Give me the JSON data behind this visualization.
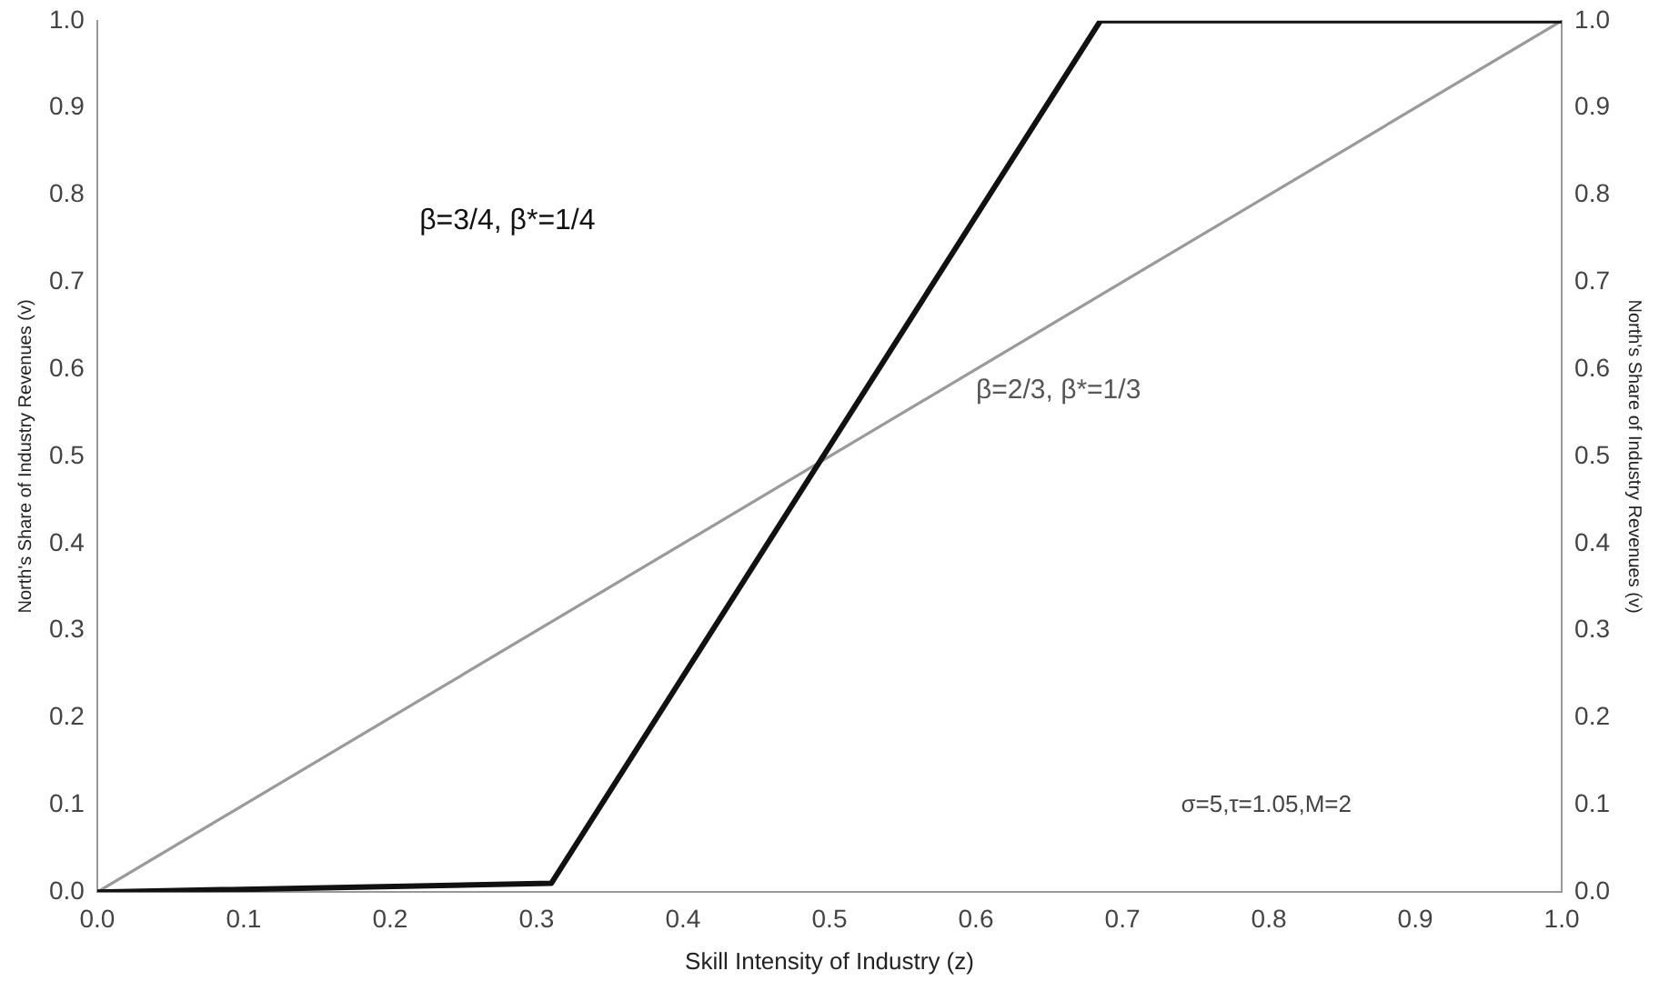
{
  "chart_data": {
    "type": "line",
    "xlabel": "Skill Intensity of Industry (z)",
    "ylabel": "North's Share of Industry Revenues (v)",
    "y2label": "North's Share of Industry Revenues (v)",
    "xlim": [
      0,
      1
    ],
    "xticks": [
      "0.0",
      0.1,
      0.2,
      0.3,
      0.4,
      0.5,
      0.6,
      0.7,
      0.8,
      0.9,
      "1.0"
    ],
    "ylim": [
      0,
      1
    ],
    "yticks": [
      "0.0",
      0.1,
      0.2,
      0.3,
      0.4,
      0.5,
      0.6,
      0.7,
      0.8,
      0.9,
      "1.0"
    ],
    "y2lim": [
      0,
      1
    ],
    "y2ticks": [
      "0.0",
      0.1,
      0.2,
      0.3,
      0.4,
      0.5,
      0.6,
      0.7,
      0.8,
      0.9,
      "1.0"
    ],
    "grid": false,
    "legend": false,
    "marker": "none",
    "line_style": "solid",
    "series": [
      {
        "name": "β=3/4, β*=1/4",
        "color": "#111111",
        "x": [
          0,
          0.31,
          0.685,
          1
        ],
        "values": [
          0,
          0.01,
          1,
          1
        ]
      },
      {
        "name": "β=2/3, β*=1/3",
        "color": "#9a9a9a",
        "x": [
          0,
          1
        ],
        "values": [
          0,
          1
        ]
      }
    ],
    "annotations": [
      "σ=5,τ=1.05,M=2"
    ]
  }
}
